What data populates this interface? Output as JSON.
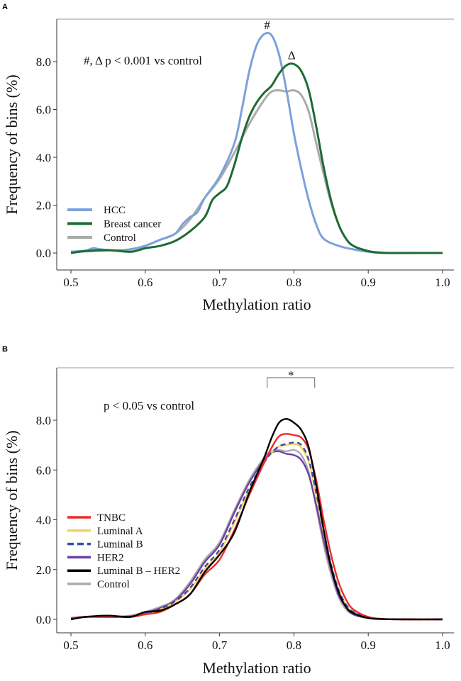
{
  "chart_data": [
    {
      "panel": "A",
      "type": "line",
      "xlabel": "Methylation ratio",
      "ylabel": "Frequency of bins (%)",
      "xlim": [
        0.5,
        1.0
      ],
      "ylim": [
        0,
        9.5
      ],
      "xticks": [
        "0.5",
        "0.6",
        "0.7",
        "0.8",
        "0.9",
        "1.0"
      ],
      "yticks": [
        "0.0",
        "2.0",
        "4.0",
        "6.0",
        "8.0"
      ],
      "annotation": "#, Δ p < 0.001 vs control",
      "markers": [
        {
          "text": "#",
          "x": 0.764,
          "y": 9.15
        },
        {
          "text": "Δ",
          "x": 0.797,
          "y": 7.9
        }
      ],
      "legend_position": "center-left",
      "series": [
        {
          "name": "HCC",
          "color": "#7ca1dc",
          "dashed": false,
          "x": [
            0.5,
            0.52,
            0.53,
            0.54,
            0.56,
            0.58,
            0.6,
            0.62,
            0.64,
            0.65,
            0.66,
            0.67,
            0.68,
            0.7,
            0.72,
            0.73,
            0.74,
            0.75,
            0.76,
            0.77,
            0.78,
            0.79,
            0.8,
            0.81,
            0.82,
            0.83,
            0.84,
            0.86,
            0.88,
            0.9,
            0.92,
            0.96,
            1.0
          ],
          "y": [
            0.05,
            0.1,
            0.2,
            0.15,
            0.1,
            0.15,
            0.3,
            0.55,
            0.8,
            1.2,
            1.5,
            1.7,
            2.3,
            3.2,
            4.6,
            6.0,
            7.6,
            8.7,
            9.15,
            9.1,
            8.3,
            6.8,
            5.0,
            3.5,
            2.2,
            1.2,
            0.6,
            0.3,
            0.15,
            0.05,
            0.0,
            0.0,
            0.0
          ]
        },
        {
          "name": "Breast cancer",
          "color": "#1d6b34",
          "dashed": false,
          "x": [
            0.5,
            0.52,
            0.55,
            0.58,
            0.6,
            0.62,
            0.64,
            0.66,
            0.68,
            0.69,
            0.7,
            0.71,
            0.72,
            0.73,
            0.74,
            0.75,
            0.76,
            0.77,
            0.78,
            0.79,
            0.8,
            0.81,
            0.82,
            0.83,
            0.84,
            0.85,
            0.86,
            0.87,
            0.88,
            0.9,
            0.92,
            0.96,
            1.0
          ],
          "y": [
            0.0,
            0.08,
            0.12,
            0.05,
            0.2,
            0.3,
            0.5,
            0.9,
            1.5,
            2.2,
            2.5,
            2.8,
            3.7,
            4.8,
            5.7,
            6.3,
            6.7,
            7.0,
            7.5,
            7.85,
            7.9,
            7.6,
            6.8,
            5.3,
            3.6,
            2.2,
            1.2,
            0.6,
            0.3,
            0.08,
            0.01,
            0.0,
            0.0
          ]
        },
        {
          "name": "Control",
          "color": "#ababab",
          "dashed": false,
          "x": [
            0.5,
            0.55,
            0.58,
            0.6,
            0.62,
            0.64,
            0.66,
            0.68,
            0.7,
            0.72,
            0.74,
            0.76,
            0.77,
            0.78,
            0.79,
            0.8,
            0.81,
            0.82,
            0.83,
            0.84,
            0.85,
            0.86,
            0.87,
            0.88,
            0.9,
            0.92,
            0.96,
            1.0
          ],
          "y": [
            0.05,
            0.1,
            0.15,
            0.3,
            0.55,
            0.8,
            1.4,
            2.3,
            3.1,
            4.2,
            5.4,
            6.4,
            6.75,
            6.8,
            6.75,
            6.8,
            6.6,
            5.9,
            4.6,
            3.3,
            2.1,
            1.2,
            0.6,
            0.3,
            0.08,
            0.01,
            0.0,
            0.0
          ]
        }
      ]
    },
    {
      "panel": "B",
      "type": "line",
      "xlabel": "Methylation ratio",
      "ylabel": "Frequency of bins (%)",
      "xlim": [
        0.5,
        1.0
      ],
      "ylim": [
        0,
        8.5
      ],
      "xticks": [
        "0.5",
        "0.6",
        "0.7",
        "0.8",
        "0.9",
        "1.0"
      ],
      "yticks": [
        "0.0",
        "2.0",
        "4.0",
        "6.0",
        "8.0"
      ],
      "annotation": "p < 0.05 vs control",
      "bracket": {
        "text": "*",
        "x_from": 0.764,
        "x_to": 0.828
      },
      "legend_position": "center-left",
      "x": [
        0.5,
        0.52,
        0.55,
        0.58,
        0.6,
        0.62,
        0.64,
        0.66,
        0.68,
        0.7,
        0.72,
        0.74,
        0.76,
        0.77,
        0.78,
        0.79,
        0.8,
        0.81,
        0.82,
        0.83,
        0.84,
        0.85,
        0.86,
        0.87,
        0.88,
        0.9,
        0.92,
        0.95,
        1.0
      ],
      "series": [
        {
          "name": "TNBC",
          "color": "#ee2a2a",
          "dashed": false,
          "y": [
            0.05,
            0.1,
            0.1,
            0.1,
            0.2,
            0.3,
            0.6,
            1.0,
            1.8,
            2.4,
            3.6,
            5.0,
            6.3,
            6.9,
            7.35,
            7.45,
            7.4,
            7.3,
            6.8,
            5.6,
            4.0,
            2.6,
            1.5,
            0.8,
            0.4,
            0.1,
            0.02,
            0,
            0
          ]
        },
        {
          "name": "Luminal A",
          "color": "#f3d35c",
          "dashed": false,
          "y": [
            0.05,
            0.1,
            0.1,
            0.1,
            0.2,
            0.4,
            0.7,
            1.2,
            2.0,
            2.7,
            3.9,
            5.2,
            6.3,
            6.7,
            6.95,
            7.0,
            7.05,
            6.9,
            6.3,
            5.0,
            3.5,
            2.2,
            1.2,
            0.6,
            0.3,
            0.07,
            0.01,
            0,
            0
          ]
        },
        {
          "name": "Luminal B",
          "color": "#3a4fa8",
          "dashed": true,
          "y": [
            0.05,
            0.1,
            0.1,
            0.1,
            0.22,
            0.42,
            0.72,
            1.25,
            2.1,
            2.8,
            4.0,
            5.3,
            6.3,
            6.7,
            6.95,
            7.05,
            7.1,
            7.0,
            6.4,
            5.1,
            3.6,
            2.2,
            1.2,
            0.6,
            0.3,
            0.07,
            0.01,
            0,
            0
          ]
        },
        {
          "name": "HER2",
          "color": "#6e3fa6",
          "dashed": false,
          "y": [
            0.05,
            0.1,
            0.1,
            0.12,
            0.25,
            0.45,
            0.75,
            1.4,
            2.3,
            3.0,
            4.3,
            5.5,
            6.4,
            6.7,
            6.75,
            6.65,
            6.6,
            6.4,
            5.8,
            4.6,
            3.2,
            2.0,
            1.0,
            0.5,
            0.2,
            0.05,
            0.01,
            0,
            0
          ]
        },
        {
          "name": "Luminal B – HER2",
          "color": "#000000",
          "dashed": false,
          "y": [
            0.0,
            0.1,
            0.15,
            0.1,
            0.3,
            0.35,
            0.6,
            1.0,
            1.9,
            2.6,
            3.5,
            5.1,
            6.5,
            7.3,
            7.9,
            8.05,
            7.9,
            7.6,
            6.9,
            5.4,
            3.6,
            2.1,
            1.1,
            0.5,
            0.25,
            0.05,
            0.01,
            0,
            0
          ]
        },
        {
          "name": "Control",
          "color": "#ababab",
          "dashed": false,
          "y": [
            0.05,
            0.1,
            0.1,
            0.15,
            0.3,
            0.5,
            0.8,
            1.5,
            2.4,
            3.1,
            4.4,
            5.6,
            6.5,
            6.75,
            6.8,
            6.75,
            6.8,
            6.6,
            5.9,
            4.5,
            3.0,
            1.8,
            0.9,
            0.4,
            0.2,
            0.05,
            0.01,
            0,
            0
          ]
        }
      ]
    }
  ]
}
